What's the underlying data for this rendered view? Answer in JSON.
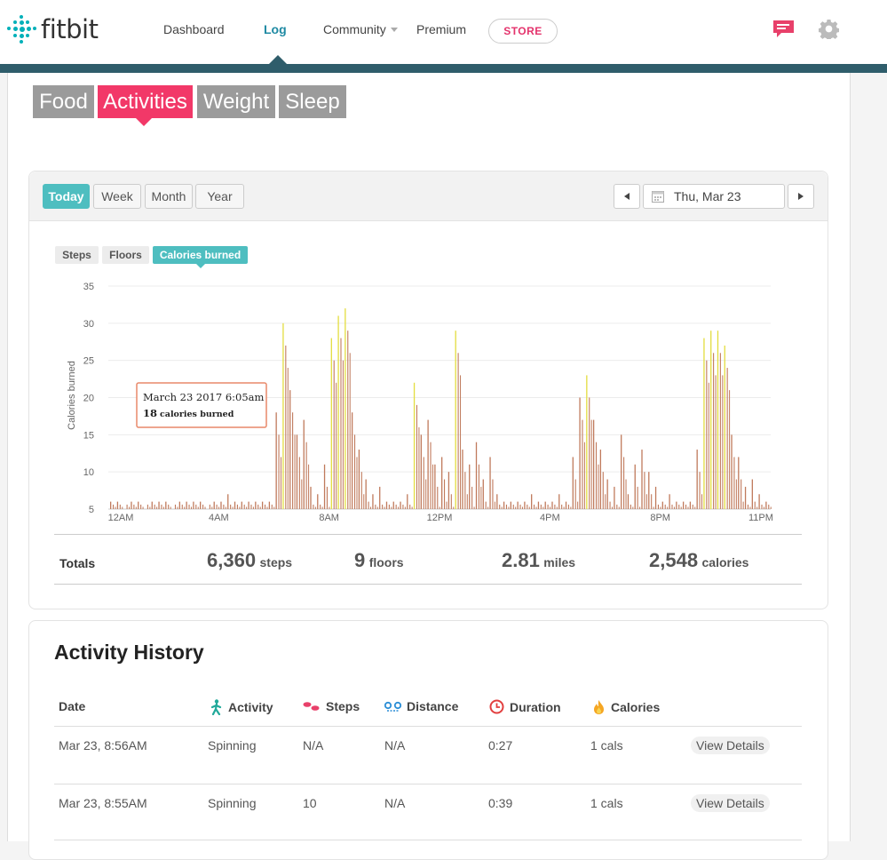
{
  "app": {
    "logo_text": "fitbit",
    "brand_color": "#00b0b9",
    "accent_color": "#f23868",
    "teal_color": "#4ebec0"
  },
  "nav": {
    "dashboard": "Dashboard",
    "log": "Log",
    "community": "Community",
    "premium": "Premium",
    "store": "STORE"
  },
  "categories": {
    "food": "Food",
    "activities": "Activities",
    "weight": "Weight",
    "sleep": "Sleep",
    "active": "Activities"
  },
  "range": {
    "today": "Today",
    "week": "Week",
    "month": "Month",
    "year": "Year",
    "active": "Today"
  },
  "date_picker": {
    "value": "Thu, Mar 23"
  },
  "metric_tabs": {
    "steps": "Steps",
    "floors": "Floors",
    "calories": "Calories burned",
    "active": "Calories burned"
  },
  "tooltip": {
    "line1": "March 23 2017 6:05am",
    "value": "18",
    "unit": "calories burned"
  },
  "chart_data": {
    "type": "bar",
    "ylabel": "Calories burned",
    "ylim": [
      5,
      35
    ],
    "yticks": [
      5,
      10,
      15,
      20,
      25,
      30,
      35
    ],
    "x_tick_labels": [
      "12AM",
      "4AM",
      "8AM",
      "12PM",
      "4PM",
      "8PM",
      "11PM"
    ],
    "grid": true,
    "low_color": "#c07a5c",
    "high_color": "#e3dd3f",
    "series": [
      {
        "bins_per_hour": 4,
        "values": [
          6,
          6,
          5,
          6,
          6,
          5,
          6,
          6,
          6,
          5,
          6,
          6,
          6,
          6,
          5,
          6,
          6,
          7,
          6,
          6,
          6,
          6,
          6,
          6,
          18,
          30,
          21,
          15,
          17,
          8,
          7,
          11,
          28,
          31,
          32,
          18,
          13,
          9,
          7,
          8,
          6,
          6,
          6,
          7,
          22,
          15,
          17,
          11,
          12,
          10,
          29,
          13,
          11,
          14,
          9,
          12,
          7,
          6,
          6,
          6,
          6,
          7,
          6,
          6,
          6,
          7,
          6,
          12,
          20,
          23,
          17,
          13,
          9,
          8,
          15,
          7,
          11,
          13,
          10,
          8,
          6,
          7,
          6,
          6,
          6,
          13,
          28,
          29,
          29,
          27,
          15,
          12,
          8,
          9,
          7,
          6
        ]
      }
    ]
  },
  "totals": {
    "label": "Totals",
    "steps_value": "6,360",
    "steps_unit": "steps",
    "floors_value": "9",
    "floors_unit": "floors",
    "miles_value": "2.81",
    "miles_unit": "miles",
    "calories_value": "2,548",
    "calories_unit": "calories"
  },
  "history": {
    "title": "Activity History",
    "columns": [
      "Date",
      "Activity",
      "Steps",
      "Distance",
      "Duration",
      "Calories"
    ],
    "rows": [
      {
        "date": "Mar 23, 8:56AM",
        "activity": "Spinning",
        "steps": "N/A",
        "distance": "N/A",
        "duration": "0:27",
        "calories": "1 cals",
        "action": "View Details"
      },
      {
        "date": "Mar 23, 8:55AM",
        "activity": "Spinning",
        "steps": "10",
        "distance": "N/A",
        "duration": "0:39",
        "calories": "1 cals",
        "action": "View Details"
      }
    ]
  }
}
